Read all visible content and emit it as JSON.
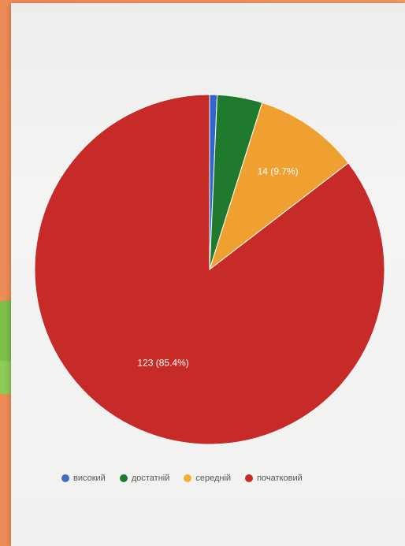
{
  "chart_data": {
    "type": "pie",
    "categories": [
      "високий",
      "достатній",
      "середній",
      "початковий"
    ],
    "values": [
      1,
      6,
      14,
      123
    ],
    "colors": [
      "#3366cc",
      "#1f7a2e",
      "#f0a030",
      "#c62b27"
    ],
    "slice_labels": [
      "",
      "",
      "14 (9.7%)",
      "123 (85.4%)"
    ],
    "legend_position": "bottom"
  }
}
